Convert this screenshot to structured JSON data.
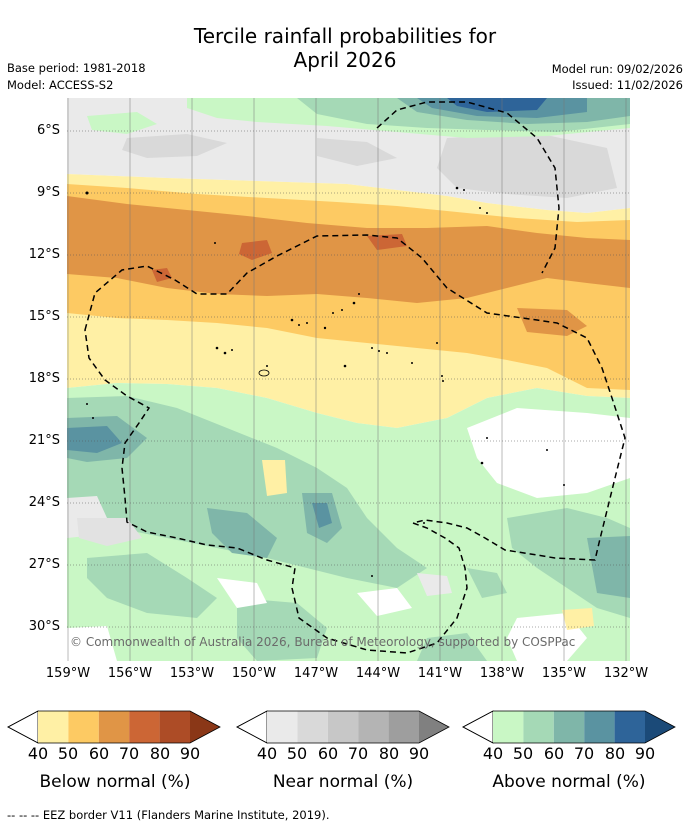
{
  "title": {
    "line1": "Tercile rainfall probabilities for",
    "line2": "April 2026"
  },
  "info": {
    "base_period": "Base period: 1981-2018",
    "model": "Model: ACCESS-S2",
    "model_run": "Model run: 09/02/2026",
    "issued": "Issued: 11/02/2026"
  },
  "map": {
    "lat_labels": [
      "6°S",
      "9°S",
      "12°S",
      "15°S",
      "18°S",
      "21°S",
      "24°S",
      "27°S",
      "30°S"
    ],
    "lon_labels": [
      "159°W",
      "156°W",
      "153°W",
      "150°W",
      "147°W",
      "144°W",
      "141°W",
      "138°W",
      "135°W",
      "132°W"
    ],
    "copyright": "© Commonwealth of Australia 2026, Bureau of Meteorology, supported by COSPPac"
  },
  "legends": [
    {
      "label": "Below normal (%)",
      "ticks": [
        "40",
        "50",
        "60",
        "70",
        "80",
        "90"
      ],
      "colors": [
        "#fff0a5",
        "#fdca63",
        "#e09546",
        "#cc6635",
        "#ad4c26",
        "#8a3717"
      ]
    },
    {
      "label": "Near normal (%)",
      "ticks": [
        "40",
        "50",
        "60",
        "70",
        "80",
        "90"
      ],
      "colors": [
        "#eaeaea",
        "#d9d9d9",
        "#c7c7c7",
        "#b4b4b4",
        "#9e9e9e",
        "#808080"
      ]
    },
    {
      "label": "Above normal (%)",
      "ticks": [
        "40",
        "50",
        "60",
        "70",
        "80",
        "90"
      ],
      "colors": [
        "#c9f7c5",
        "#a5d9b6",
        "#7fb6a9",
        "#5a93a1",
        "#2e6499",
        "#1b4a78"
      ]
    }
  ],
  "footnote": "--  --  -- EEZ border V11 (Flanders Marine Institute, 2019)."
}
